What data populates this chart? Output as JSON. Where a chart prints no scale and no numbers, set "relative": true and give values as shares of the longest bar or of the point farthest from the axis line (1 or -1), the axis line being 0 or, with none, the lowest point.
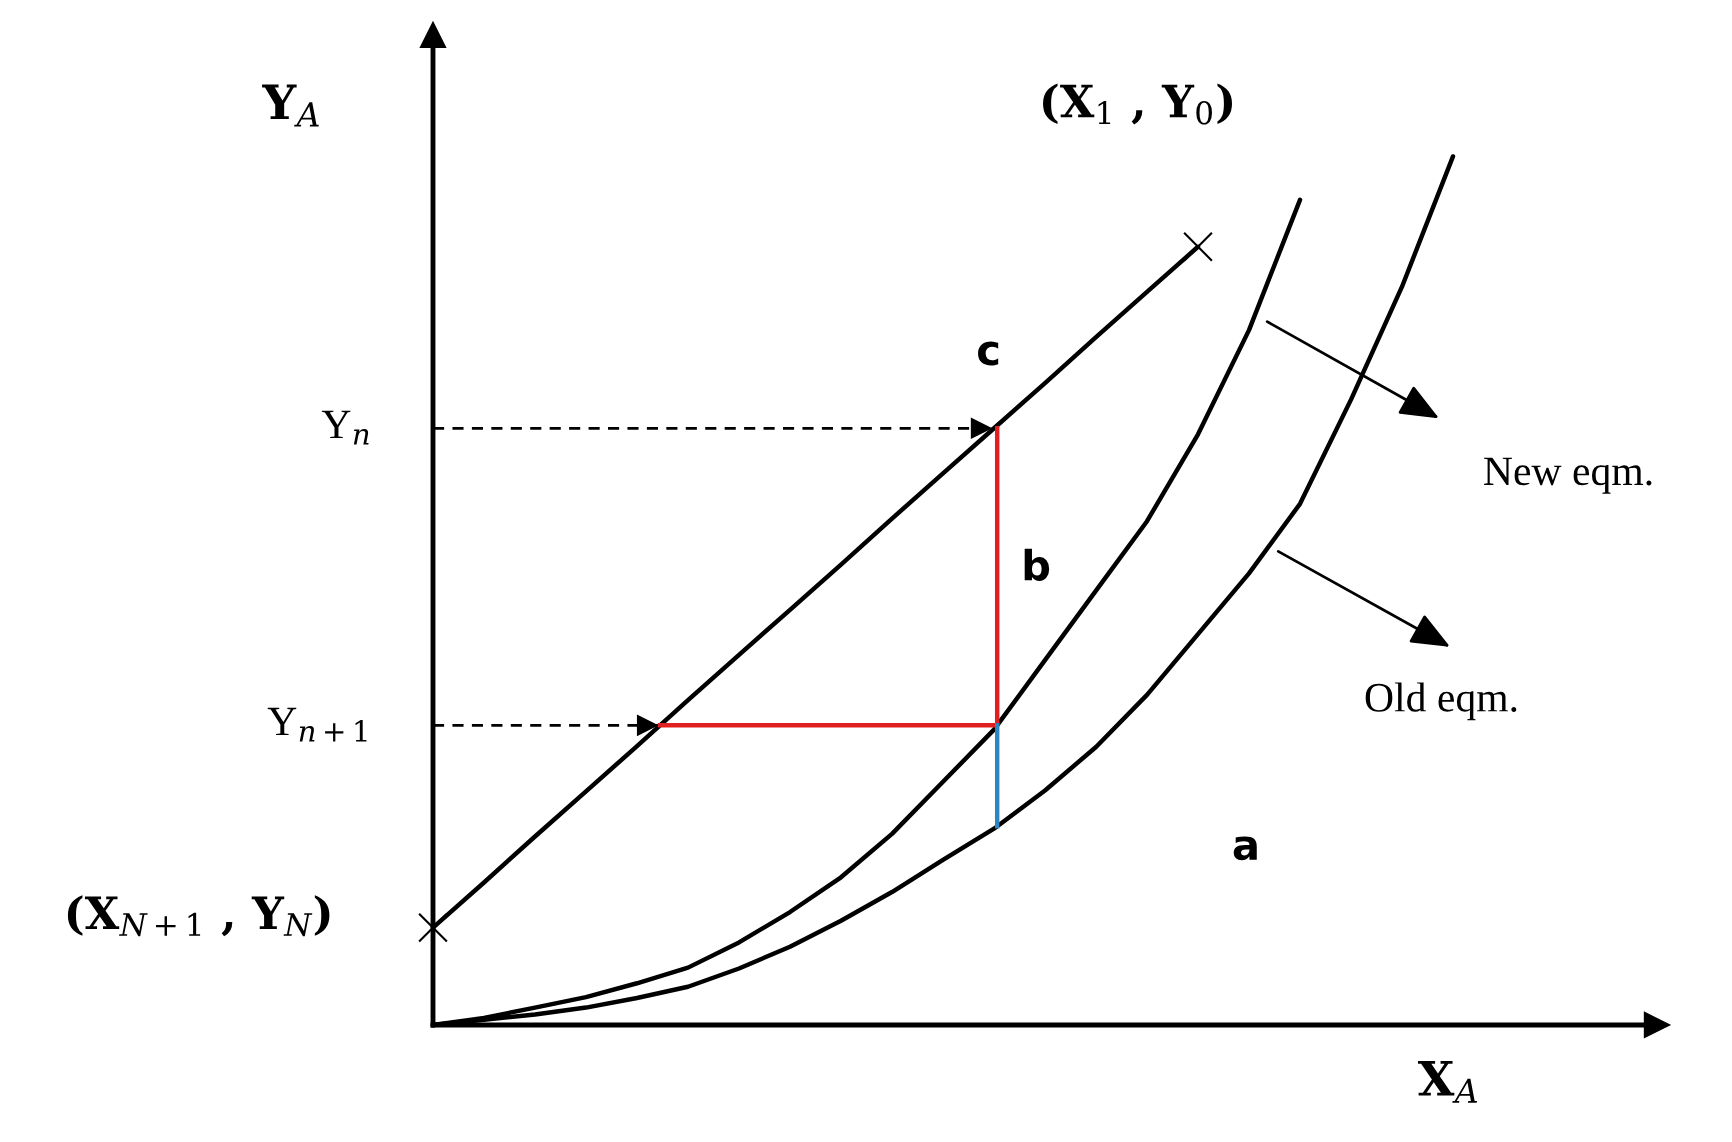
{
  "chart_data": {
    "type": "line",
    "relative": true,
    "xlabel": "X$_{A}$",
    "ylabel": "Y$_{A}$",
    "categories": [
      null,
      null,
      null,
      null,
      null,
      null,
      null,
      null,
      null,
      null,
      null,
      null,
      null,
      null,
      null,
      null,
      null,
      null,
      null,
      null,
      null
    ],
    "series": [
      {
        "color": "#000000",
        "values": [
          0.112,
          0.164,
          0.217,
          0.269,
          0.321,
          0.374,
          0.426,
          0.478,
          0.53,
          0.583,
          0.635,
          0.687,
          0.739,
          0.792,
          0.844,
          0.896,
          null,
          null,
          null,
          null,
          null
        ]
      },
      {
        "color": "#000000",
        "values": [
          0,
          0.008,
          0.02,
          0.032,
          0.048,
          0.066,
          0.095,
          0.13,
          0.17,
          0.22,
          0.28,
          0.34,
          0.42,
          0.5,
          0.58,
          0.68,
          0.8,
          0.95,
          null,
          null,
          null
        ]
      },
      {
        "color": "#000000",
        "values": [
          0,
          0.006,
          0.012,
          0.02,
          0.031,
          0.044,
          0.065,
          0.09,
          0.12,
          0.153,
          0.19,
          0.226,
          0.27,
          0.32,
          0.38,
          0.45,
          0.52,
          0.6,
          0.72,
          0.85,
          1.0
        ]
      }
    ],
    "ref_lines": [
      {
        "axis": "y",
        "value": 0.687,
        "label": "Y$_{n}$",
        "color": "#000000",
        "line_style": "dashed"
      },
      {
        "axis": "y",
        "value": 0.345,
        "label": "Y$_{n+1}$",
        "color": "#000000",
        "line_style": "dashed"
      }
    ],
    "annotations": [
      "(X$_{1}$ , Y$_{0}$)",
      "c",
      "b",
      "a",
      "New eqm.",
      "Old eqm.",
      "(X$_{N+1}$ , Y$_{N}$)"
    ]
  }
}
